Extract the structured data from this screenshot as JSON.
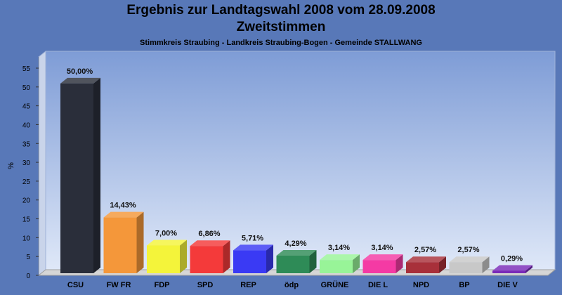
{
  "title": "Ergebnis zur Landtagswahl 2008 vom 28.09.2008",
  "subtitle": "Zweitstimmen",
  "subsubtitle": "Stimmkreis Straubing - Landkreis Straubing-Bogen - Gemeinde STALLWANG",
  "chart_data": {
    "type": "bar",
    "categories": [
      "CSU",
      "FW FR",
      "FDP",
      "SPD",
      "REP",
      "ödp",
      "GRÜNE",
      "DIE L",
      "NPD",
      "BP",
      "DIE V"
    ],
    "values": [
      50.0,
      14.43,
      7.0,
      6.86,
      5.71,
      4.29,
      3.14,
      3.14,
      2.57,
      2.57,
      0.29
    ],
    "labels": [
      "50,00%",
      "14,43%",
      "7,00%",
      "6,86%",
      "5,71%",
      "4,29%",
      "3,14%",
      "3,14%",
      "2,57%",
      "2,57%",
      "0,29%"
    ],
    "colors": [
      "#2a2e3a",
      "#f4973a",
      "#f4f43a",
      "#f43a3a",
      "#3a3af4",
      "#2e8b57",
      "#98f498",
      "#f43aa4",
      "#a8303a",
      "#c8c8c8",
      "#7a2ab8"
    ],
    "ylabel": "%",
    "xlabel": "",
    "ylim": [
      0,
      55
    ],
    "yticks": [
      0,
      5,
      10,
      15,
      20,
      25,
      30,
      35,
      40,
      45,
      50,
      55
    ],
    "grid": false,
    "legend": "none"
  }
}
